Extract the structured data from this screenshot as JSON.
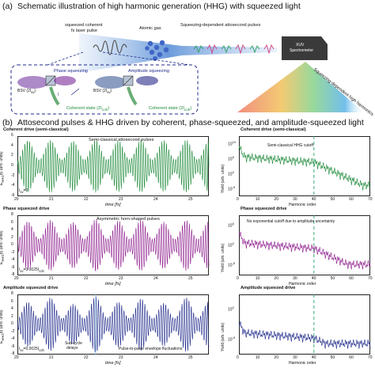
{
  "panel_a": {
    "letter": "(a)",
    "title": "Schematic illustration of high harmonic generation (HHG) with squeezed light",
    "label_laser_1": "squeezed coherent",
    "label_laser_2": "fs laser pulse",
    "label_gas": "Atomic gas",
    "label_pulses": "Squeezing-dependent attosecond pulses",
    "label_xuv_1": "XUV",
    "label_xuv_2": "Spectrometer",
    "label_harmonics": "Squeezing-dependent high harmonics",
    "label_phase": "Phase squeezing",
    "label_amp": "Amplitude squeezing",
    "label_bsv1": "BSV (2I",
    "label_bsv1_sub": "sv",
    "label_bsv2": "BSV (2I",
    "label_bsv2_sub": "sv",
    "label_itot": "I",
    "label_coh": "Coherent  state (2I",
    "label_coh2": "Coherent  state (2I"
  },
  "panel_b": {
    "letter": "(b)",
    "title": "Attosecond pulses & HHG driven by coherent, phase-squeezed, and amplitude-squeezed light"
  },
  "colors": {
    "coherent": "#1e8a3a",
    "phase": "#8e1f8e",
    "amplitude": "#1f2a8a",
    "cutoff_line": "#27a36a"
  },
  "chart_data": [
    {
      "type": "line",
      "title": "Coherent drive (semi-classical)",
      "annotation": "Semi-classical attosecond pulses",
      "inset": "I",
      "inset_sub": "sv",
      "inset_val": "=0",
      "xlabel": "time [fs]",
      "ylabel": "E",
      "ylabel_sub": "HHG",
      "ylabel_rest": "(t) (arb. units)",
      "xlim": [
        20,
        25.5
      ],
      "ylim": [
        -6,
        6
      ],
      "xticks": [
        "20",
        "21",
        "22",
        "23",
        "24",
        "25"
      ],
      "yticks": [
        "6",
        "4",
        "2",
        "0",
        "-2",
        "-4",
        "-6"
      ],
      "series": [
        {
          "envelope_peaks_fs": [
            20.3,
            20.95,
            21.6,
            22.25,
            22.9,
            23.55,
            24.2,
            24.85,
            25.5
          ],
          "peak_amplitudes": [
            5.2,
            5.3,
            5.1,
            5.3,
            5.2,
            5.3,
            5.2,
            5.3,
            5.2
          ]
        }
      ]
    },
    {
      "type": "line",
      "title": "Phase squeezed drive",
      "annotation": "Asymmetric horn-shaped pulses",
      "inset": "I",
      "inset_sub": "sv",
      "inset_val": "=0.0025I",
      "inset_val_sub": "coh",
      "xlabel": "time [fs]",
      "ylabel": "E",
      "ylabel_sub": "HHG",
      "ylabel_rest": "(t) (arb. units)",
      "xlim": [
        20,
        25.5
      ],
      "ylim": [
        -8,
        8
      ],
      "xticks": [
        "20",
        "21",
        "22",
        "23",
        "24",
        "25"
      ],
      "yticks": [
        "8",
        "6",
        "4",
        "2",
        "0",
        "-2",
        "-4",
        "-6",
        "-8"
      ],
      "series": [
        {
          "envelope_peaks_fs": [
            20.3,
            20.95,
            21.6,
            22.25,
            22.9,
            23.55,
            24.2,
            24.85,
            25.5
          ],
          "peak_amplitudes": [
            6.5,
            6.8,
            6.2,
            7.0,
            6.6,
            6.9,
            6.3,
            6.8,
            6.5
          ]
        }
      ]
    },
    {
      "type": "line",
      "title": "Amplitude squeezed drive",
      "annotation_1": "Sub-cycle",
      "annotation_1b": "delays",
      "annotation_2": "Pulse-to-pulse envelope fluctuations",
      "inset": "I",
      "inset_sub": "sv",
      "inset_val": "=0.0025I",
      "inset_val_sub": "coh",
      "xlabel": "time [fs]",
      "ylabel": "E",
      "ylabel_sub": "HHG",
      "ylabel_rest": "(t) (arb. units)",
      "xlim": [
        20,
        25.5
      ],
      "ylim": [
        -8,
        8
      ],
      "xticks": [
        "20",
        "21",
        "22",
        "23",
        "24",
        "25"
      ],
      "yticks": [
        "8",
        "6",
        "4",
        "2",
        "0",
        "-2",
        "-4",
        "-6",
        "-8"
      ],
      "series": [
        {
          "envelope_peaks_fs": [
            20.3,
            20.95,
            21.6,
            22.25,
            22.9,
            23.55,
            24.2,
            24.85,
            25.5
          ],
          "peak_amplitudes": [
            6.0,
            7.2,
            5.5,
            7.5,
            6.1,
            7.0,
            5.8,
            7.3,
            6.2
          ]
        }
      ]
    },
    {
      "type": "line",
      "title": "Coherent drive (semi-classical)",
      "annotation": "Semi-classical HHG cutoff",
      "xlabel": "Harmonic order",
      "ylabel": "Yield (arb. units)",
      "xlim": [
        0,
        70
      ],
      "yscale": "log",
      "xticks": [
        "0",
        "10",
        "20",
        "30",
        "40",
        "50",
        "60",
        "70"
      ],
      "yticks": [
        "10",
        "10",
        "10",
        "10"
      ],
      "ytick_exp": [
        "10",
        "5",
        "0",
        "-5"
      ],
      "cutoff_order": 40,
      "series": [
        {
          "log_yield_plateau": 5,
          "log_yield_tail": -3
        }
      ]
    },
    {
      "type": "line",
      "title": "Phase squeezed drive",
      "annotation": "No exponential cutoff due to amplitude uncertainty",
      "xlabel": "Harmonic order",
      "ylabel": "Yield (arb. units)",
      "xlim": [
        0,
        70
      ],
      "yscale": "log",
      "xticks": [
        "0",
        "10",
        "20",
        "30",
        "40",
        "50",
        "60",
        "70"
      ],
      "yticks": [
        "10",
        "10",
        "10"
      ],
      "ytick_exp": [
        "5",
        "0",
        "-5"
      ],
      "cutoff_order": 40,
      "series": [
        {
          "log_yield_plateau": 3,
          "log_yield_tail": -3
        }
      ]
    },
    {
      "type": "line",
      "title": "Amplitude squeezed drive",
      "xlabel": "Harmonic order",
      "ylabel": "Yield (arb. units)",
      "xlim": [
        0,
        70
      ],
      "yscale": "log",
      "xticks": [
        "0",
        "10",
        "20",
        "30",
        "40",
        "50",
        "60",
        "70"
      ],
      "yticks": [
        "10",
        "10"
      ],
      "ytick_exp": [
        "0",
        "-5"
      ],
      "cutoff_order": 40,
      "series": [
        {
          "log_yield_plateau": 0,
          "log_yield_tail": -3
        }
      ]
    }
  ]
}
